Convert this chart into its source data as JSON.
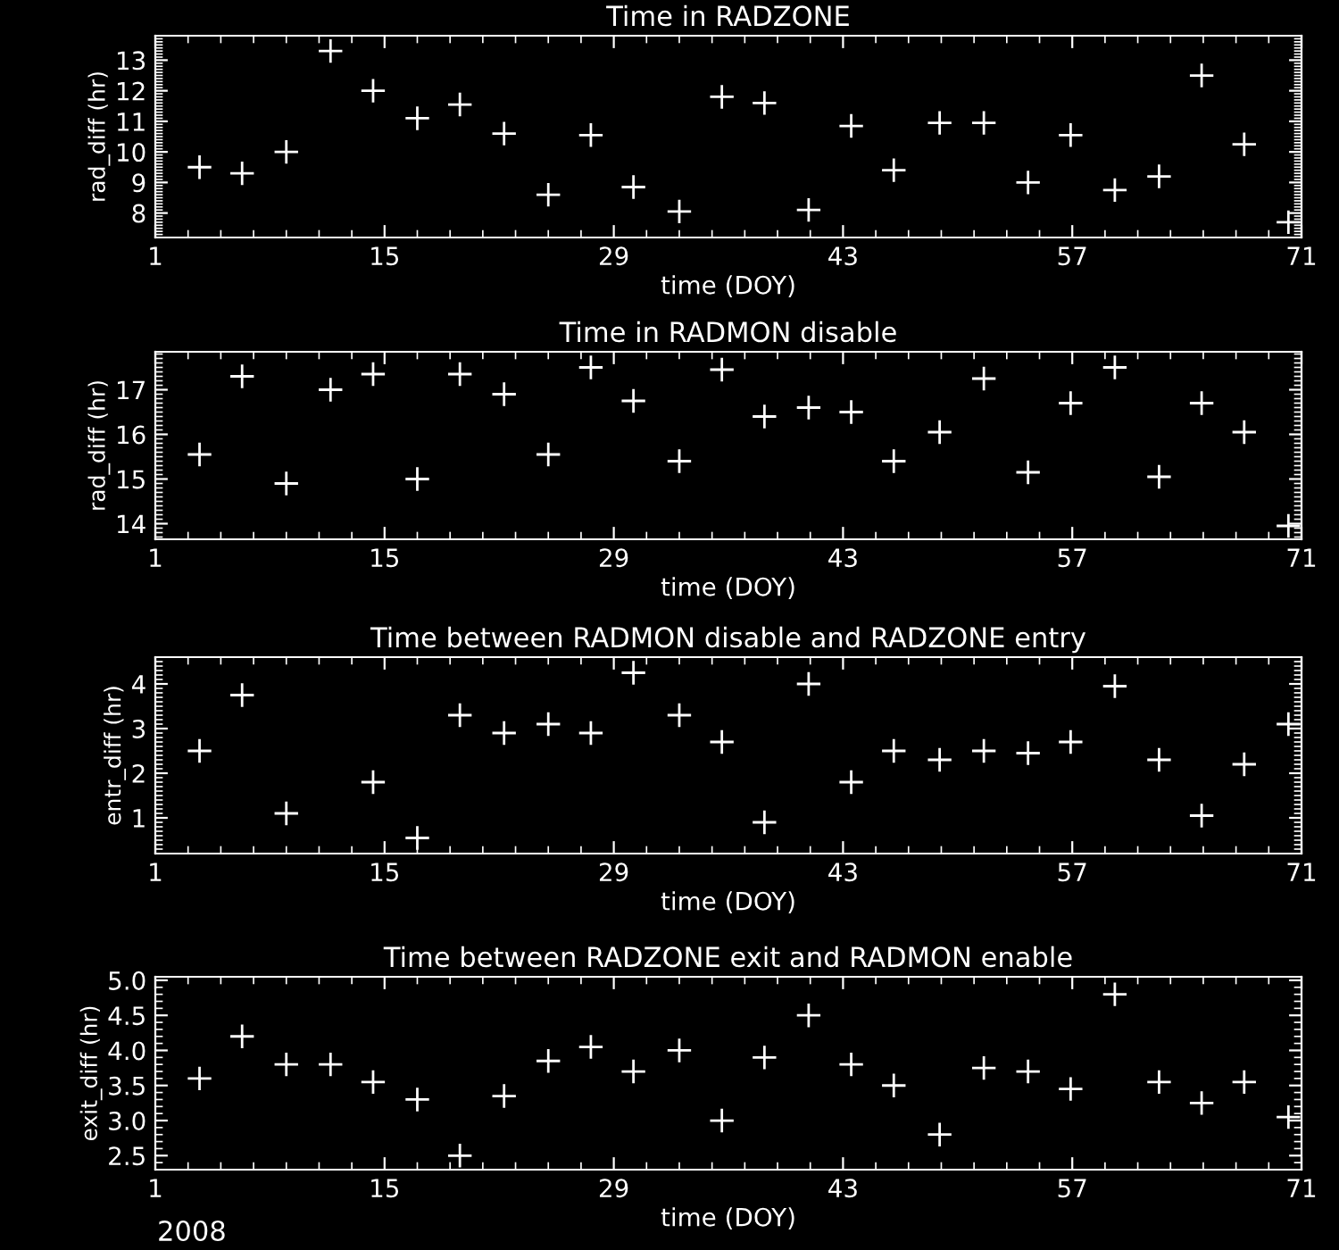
{
  "chart_data": [
    {
      "type": "scatter",
      "title": "Time in RADZONE",
      "xlabel": "time (DOY)",
      "ylabel": "rad_diff (hr)",
      "marker": "cross",
      "grid": false,
      "color": "#ffffff",
      "x": [
        3.7,
        6.3,
        9.0,
        11.7,
        14.3,
        17.0,
        19.6,
        22.3,
        25.0,
        27.6,
        30.2,
        33.0,
        35.6,
        38.2,
        40.9,
        43.5,
        46.1,
        48.9,
        51.6,
        54.3,
        56.9,
        59.6,
        62.3,
        64.9,
        67.5,
        70.2
      ],
      "values": [
        9.5,
        9.3,
        10.0,
        13.3,
        12.0,
        11.1,
        11.55,
        10.6,
        8.6,
        10.55,
        8.85,
        8.05,
        11.8,
        11.6,
        8.1,
        10.85,
        9.4,
        10.95,
        10.95,
        9.0,
        10.55,
        8.75,
        9.2,
        12.5,
        10.25,
        7.7
      ],
      "xlim": [
        1,
        71
      ],
      "xticks": [
        1,
        15,
        29,
        43,
        57,
        71
      ],
      "ylim": [
        7.2,
        13.8
      ],
      "yticks": [
        8,
        9,
        10,
        11,
        12,
        13
      ]
    },
    {
      "type": "scatter",
      "title": "Time in RADMON disable",
      "xlabel": "time (DOY)",
      "ylabel": "rad_diff (hr)",
      "marker": "cross",
      "grid": false,
      "color": "#ffffff",
      "x": [
        3.7,
        6.3,
        9.0,
        11.7,
        14.3,
        17.0,
        19.6,
        22.3,
        25.0,
        27.6,
        30.2,
        33.0,
        35.6,
        38.2,
        40.9,
        43.5,
        46.1,
        48.9,
        51.6,
        54.3,
        56.9,
        59.6,
        62.3,
        64.9,
        67.5,
        70.2
      ],
      "values": [
        15.55,
        17.3,
        14.9,
        17.0,
        17.35,
        15.0,
        17.35,
        16.9,
        15.55,
        17.5,
        16.75,
        15.4,
        17.45,
        16.4,
        16.6,
        16.5,
        15.4,
        16.05,
        17.25,
        15.15,
        16.7,
        17.5,
        15.05,
        16.7,
        16.05,
        13.95
      ],
      "xlim": [
        1,
        71
      ],
      "xticks": [
        1,
        15,
        29,
        43,
        57,
        71
      ],
      "ylim": [
        13.65,
        17.85
      ],
      "yticks": [
        14,
        15,
        16,
        17
      ]
    },
    {
      "type": "scatter",
      "title": "Time between RADMON disable and RADZONE entry",
      "xlabel": "time (DOY)",
      "ylabel": "entr_diff (hr)",
      "marker": "cross",
      "grid": false,
      "color": "#ffffff",
      "x": [
        3.7,
        6.3,
        9.0,
        14.3,
        17.0,
        19.6,
        22.3,
        25.0,
        27.6,
        30.2,
        33.0,
        35.6,
        38.2,
        40.9,
        43.5,
        46.1,
        48.9,
        51.6,
        54.3,
        56.9,
        59.6,
        62.3,
        64.9,
        67.5,
        70.2
      ],
      "values": [
        2.5,
        3.75,
        1.1,
        1.8,
        0.55,
        3.3,
        2.9,
        3.1,
        2.9,
        4.25,
        3.3,
        2.7,
        0.9,
        4.0,
        1.8,
        2.5,
        2.3,
        2.5,
        2.45,
        2.7,
        3.95,
        2.3,
        1.05,
        2.2,
        3.1
      ],
      "xlim": [
        1,
        71
      ],
      "xticks": [
        1,
        15,
        29,
        43,
        57,
        71
      ],
      "ylim": [
        0.2,
        4.6
      ],
      "yticks": [
        1,
        2,
        3,
        4
      ]
    },
    {
      "type": "scatter",
      "title": "Time between RADZONE exit and RADMON enable",
      "xlabel": "time (DOY)",
      "ylabel": "exit_diff (hr)",
      "marker": "cross",
      "grid": false,
      "color": "#ffffff",
      "x": [
        3.7,
        6.3,
        9.0,
        11.7,
        14.3,
        17.0,
        19.6,
        22.3,
        25.0,
        27.6,
        30.2,
        33.0,
        35.6,
        38.2,
        40.9,
        43.5,
        46.1,
        48.9,
        51.6,
        54.3,
        56.9,
        59.6,
        62.3,
        64.9,
        67.5,
        70.2
      ],
      "values": [
        3.6,
        4.2,
        3.8,
        3.8,
        3.55,
        3.3,
        2.5,
        3.35,
        3.85,
        4.05,
        3.7,
        4.0,
        3.0,
        3.9,
        4.5,
        3.8,
        3.5,
        2.8,
        3.75,
        3.7,
        3.45,
        4.8,
        3.55,
        3.25,
        3.55,
        3.05
      ],
      "xlim": [
        1,
        71
      ],
      "xticks": [
        1,
        15,
        29,
        43,
        57,
        71
      ],
      "ylim": [
        2.3,
        5.05
      ],
      "yticks": [
        {
          "value": 2.5,
          "label": "2.5"
        },
        {
          "value": 3.0,
          "label": "3.0"
        },
        {
          "value": 3.5,
          "label": "3.5"
        },
        {
          "value": 4.0,
          "label": "4.0"
        },
        {
          "value": 4.5,
          "label": "4.5"
        },
        {
          "value": 5.0,
          "label": "5.0"
        }
      ],
      "annotations": [
        "2008"
      ]
    }
  ]
}
